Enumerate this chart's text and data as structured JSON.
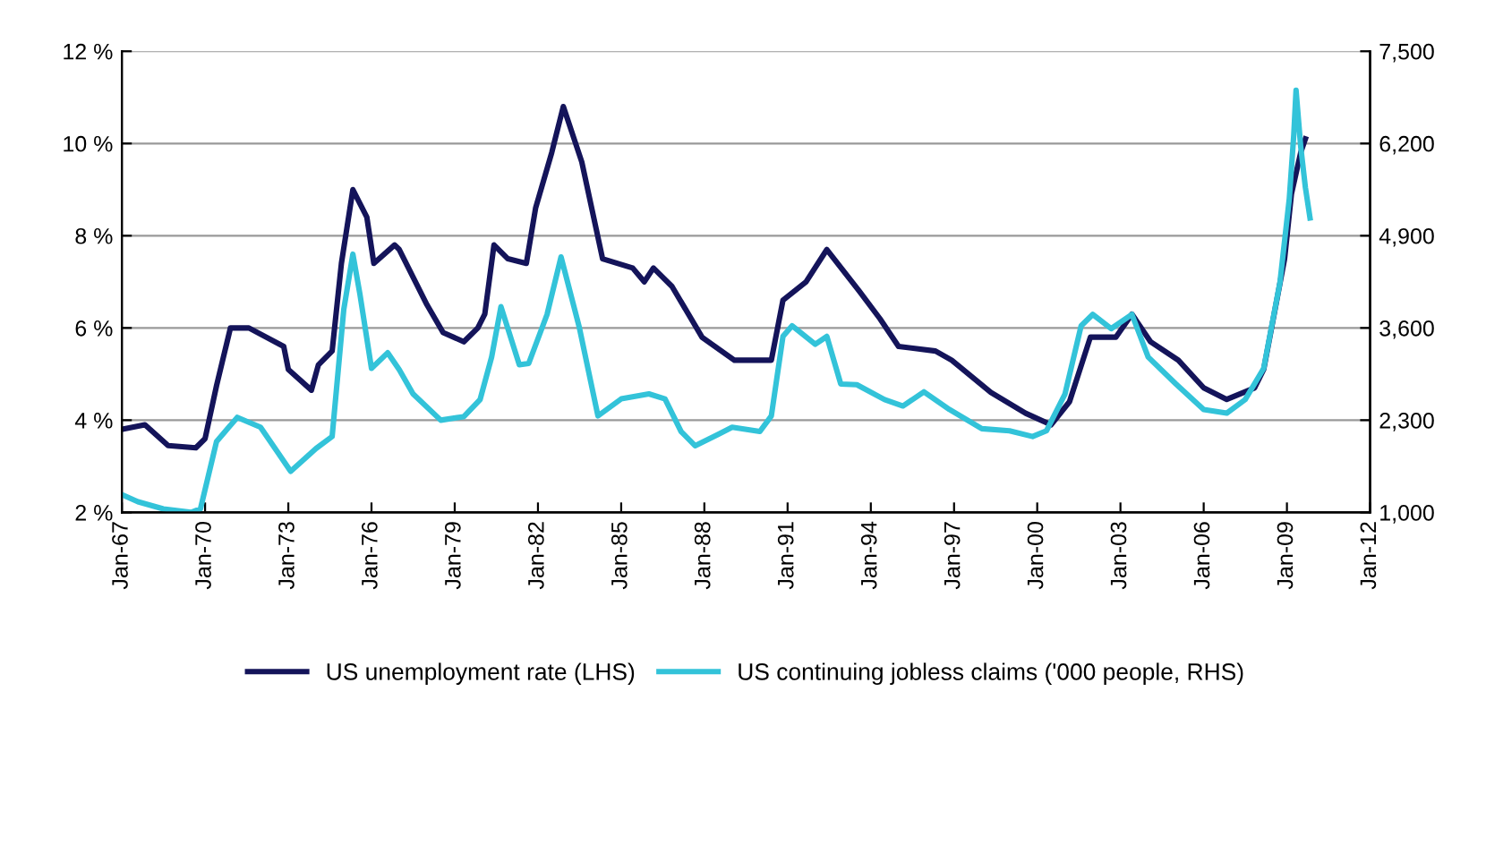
{
  "chart_data": {
    "type": "line",
    "x": [
      "1967-01",
      "1967-11",
      "1968-09",
      "1969-09",
      "1970-01",
      "1970-06",
      "1970-12",
      "1971-08",
      "1972-11",
      "1973-01",
      "1973-11",
      "1974-02",
      "1974-08",
      "1974-12",
      "1975-05",
      "1975-11",
      "1976-02",
      "1976-11",
      "1977-01",
      "1978-01",
      "1978-08",
      "1979-05",
      "1979-11",
      "1980-02",
      "1980-06",
      "1980-12",
      "1981-08",
      "1981-12",
      "1982-07",
      "1982-12",
      "1983-08",
      "1984-05",
      "1985-06",
      "1985-11",
      "1986-03",
      "1986-11",
      "1987-12",
      "1989-02",
      "1990-06",
      "1990-11",
      "1991-09",
      "1992-06",
      "1993-08",
      "1994-05",
      "1995-01",
      "1996-05",
      "1996-12",
      "1998-05",
      "1999-08",
      "2000-07",
      "2001-03",
      "2001-12",
      "2002-11",
      "2003-06",
      "2004-02",
      "2005-02",
      "2006-01",
      "2006-11",
      "2007-11",
      "2008-03",
      "2008-12",
      "2009-03",
      "2009-07",
      "2009-09"
    ],
    "series": [
      {
        "name": "US unemployment rate (LHS)",
        "color": "#14145a",
        "values": [
          3.8,
          3.9,
          3.45,
          3.4,
          3.6,
          4.75,
          6.0,
          6.0,
          5.6,
          5.1,
          4.65,
          5.2,
          5.5,
          7.4,
          9.0,
          8.4,
          7.4,
          7.8,
          7.7,
          6.5,
          5.9,
          5.7,
          6.0,
          6.3,
          7.8,
          7.5,
          7.4,
          8.6,
          9.8,
          10.8,
          9.6,
          7.5,
          7.3,
          7.0,
          7.3,
          6.9,
          5.8,
          5.3,
          5.3,
          6.6,
          7.0,
          7.7,
          6.8,
          6.2,
          5.6,
          5.5,
          5.3,
          4.6,
          4.15,
          3.9,
          4.4,
          5.8,
          5.8,
          6.3,
          5.7,
          5.3,
          4.7,
          4.45,
          4.7,
          5.1,
          7.5,
          8.9,
          9.8,
          10.1
        ]
      },
      {
        "name": "US continuing jobless claims ('000 people, RHS)",
        "color": "#33c3d9",
        "axis": "y2",
        "x": [
          "1967-01",
          "1967-08",
          "1968-07",
          "1969-07",
          "1969-11",
          "1970-06",
          "1971-03",
          "1972-01",
          "1973-02",
          "1974-01",
          "1974-08",
          "1975-01",
          "1975-05",
          "1975-08",
          "1976-01",
          "1976-08",
          "1977-01",
          "1977-07",
          "1978-07",
          "1979-05",
          "1979-12",
          "1980-05",
          "1980-09",
          "1981-05",
          "1981-09",
          "1982-05",
          "1982-11",
          "1983-07",
          "1984-03",
          "1985-01",
          "1986-01",
          "1986-08",
          "1987-03",
          "1987-09",
          "1988-07",
          "1989-01",
          "1990-01",
          "1990-06",
          "1990-11",
          "1991-03",
          "1992-01",
          "1992-06",
          "1992-12",
          "1993-07",
          "1994-07",
          "1995-03",
          "1995-12",
          "1996-11",
          "1998-01",
          "1999-01",
          "1999-11",
          "2000-05",
          "2001-01",
          "2001-08",
          "2002-01",
          "2002-09",
          "2003-06",
          "2004-01",
          "2005-01",
          "2006-01",
          "2006-11",
          "2007-07",
          "2008-03",
          "2008-10",
          "2009-02",
          "2009-04",
          "2009-05",
          "2009-07",
          "2009-09",
          "2009-11"
        ],
        "values": [
          1250,
          1150,
          1050,
          1000,
          1050,
          2000,
          2340,
          2200,
          1580,
          1900,
          2070,
          3860,
          4640,
          4080,
          3030,
          3250,
          3010,
          2670,
          2300,
          2350,
          2590,
          3190,
          3900,
          3080,
          3100,
          3790,
          4600,
          3600,
          2360,
          2600,
          2670,
          2600,
          2140,
          1940,
          2100,
          2200,
          2140,
          2360,
          3480,
          3630,
          3370,
          3480,
          2810,
          2800,
          2590,
          2500,
          2700,
          2450,
          2180,
          2150,
          2070,
          2150,
          2670,
          3630,
          3790,
          3590,
          3790,
          3190,
          2810,
          2450,
          2400,
          2590,
          3030,
          4240,
          5420,
          6320,
          6950,
          6160,
          5580,
          5150
        ]
      }
    ],
    "xlim": [
      "1967-01",
      "2012-01"
    ],
    "xticks": [
      {
        "value": "1967-01",
        "label": "Jan-67"
      },
      {
        "value": "1970-01",
        "label": "Jan-70"
      },
      {
        "value": "1973-01",
        "label": "Jan-73"
      },
      {
        "value": "1976-01",
        "label": "Jan-76"
      },
      {
        "value": "1979-01",
        "label": "Jan-79"
      },
      {
        "value": "1982-01",
        "label": "Jan-82"
      },
      {
        "value": "1985-01",
        "label": "Jan-85"
      },
      {
        "value": "1988-01",
        "label": "Jan-88"
      },
      {
        "value": "1991-01",
        "label": "Jan-91"
      },
      {
        "value": "1994-01",
        "label": "Jan-94"
      },
      {
        "value": "1997-01",
        "label": "Jan-97"
      },
      {
        "value": "2000-01",
        "label": "Jan-00"
      },
      {
        "value": "2003-01",
        "label": "Jan-03"
      },
      {
        "value": "2006-01",
        "label": "Jan-06"
      },
      {
        "value": "2009-01",
        "label": "Jan-09"
      },
      {
        "value": "2012-01",
        "label": "Jan-12"
      }
    ],
    "ylim": [
      2,
      12
    ],
    "yticks": [
      {
        "value": 2,
        "label": "2 %"
      },
      {
        "value": 4,
        "label": "4 %"
      },
      {
        "value": 6,
        "label": "6 %"
      },
      {
        "value": 8,
        "label": "8 %"
      },
      {
        "value": 10,
        "label": "10 %"
      },
      {
        "value": 12,
        "label": "12 %"
      }
    ],
    "y2lim": [
      1000,
      7500
    ],
    "y2ticks": [
      {
        "value": 1000,
        "label": "1,000"
      },
      {
        "value": 2300,
        "label": "2,300"
      },
      {
        "value": 3600,
        "label": "3,600"
      },
      {
        "value": 4900,
        "label": "4,900"
      },
      {
        "value": 6200,
        "label": "6,200"
      },
      {
        "value": 7500,
        "label": "7,500"
      }
    ],
    "grid": "y",
    "legend": "bottom",
    "line_style": "solid"
  }
}
